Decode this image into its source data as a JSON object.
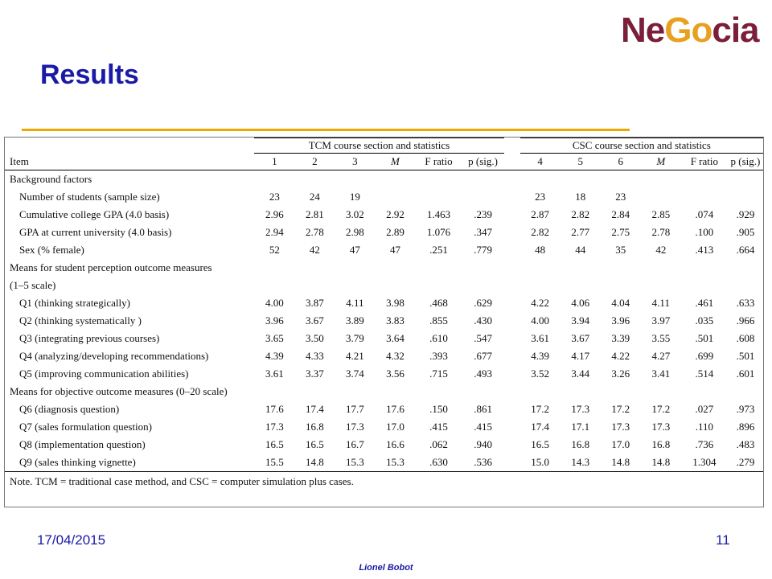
{
  "logo": {
    "part1": "Ne",
    "part2": "Go",
    "part3": "cia"
  },
  "title": "Results",
  "table": {
    "group_tcm": "TCM course section and statistics",
    "group_csc": "CSC course section and statistics",
    "columns": [
      "Item",
      "1",
      "2",
      "3",
      "M",
      "F ratio",
      "p (sig.)",
      "4",
      "5",
      "6",
      "M",
      "F ratio",
      "p (sig.)"
    ],
    "rows": [
      {
        "type": "section",
        "label": "Background factors",
        "values": []
      },
      {
        "type": "item",
        "label": "Number of students (sample size)",
        "values": [
          "23",
          "24",
          "19",
          "",
          "",
          "",
          "23",
          "18",
          "23",
          "",
          "",
          ""
        ]
      },
      {
        "type": "item",
        "label": "Cumulative college GPA (4.0 basis)",
        "values": [
          "2.96",
          "2.81",
          "3.02",
          "2.92",
          "1.463",
          ".239",
          "2.87",
          "2.82",
          "2.84",
          "2.85",
          ".074",
          ".929"
        ]
      },
      {
        "type": "item",
        "label": "GPA at current university (4.0 basis)",
        "values": [
          "2.94",
          "2.78",
          "2.98",
          "2.89",
          "1.076",
          ".347",
          "2.82",
          "2.77",
          "2.75",
          "2.78",
          ".100",
          ".905"
        ]
      },
      {
        "type": "item",
        "label": "Sex (% female)",
        "values": [
          "52",
          "42",
          "47",
          "47",
          ".251",
          ".779",
          "48",
          "44",
          "35",
          "42",
          ".413",
          ".664"
        ]
      },
      {
        "type": "section",
        "label": "Means for student perception outcome measures",
        "values": []
      },
      {
        "type": "section",
        "label": "(1–5 scale)",
        "values": []
      },
      {
        "type": "item",
        "label": "Q1 (thinking strategically)",
        "values": [
          "4.00",
          "3.87",
          "4.11",
          "3.98",
          ".468",
          ".629",
          "4.22",
          "4.06",
          "4.04",
          "4.11",
          ".461",
          ".633"
        ]
      },
      {
        "type": "item",
        "label": "Q2 (thinking systematically )",
        "values": [
          "3.96",
          "3.67",
          "3.89",
          "3.83",
          ".855",
          ".430",
          "4.00",
          "3.94",
          "3.96",
          "3.97",
          ".035",
          ".966"
        ]
      },
      {
        "type": "item",
        "label": "Q3 (integrating previous courses)",
        "values": [
          "3.65",
          "3.50",
          "3.79",
          "3.64",
          ".610",
          ".547",
          "3.61",
          "3.67",
          "3.39",
          "3.55",
          ".501",
          ".608"
        ]
      },
      {
        "type": "item",
        "label": "Q4 (analyzing/developing recommendations)",
        "values": [
          "4.39",
          "4.33",
          "4.21",
          "4.32",
          ".393",
          ".677",
          "4.39",
          "4.17",
          "4.22",
          "4.27",
          ".699",
          ".501"
        ]
      },
      {
        "type": "item",
        "label": "Q5 (improving communication abilities)",
        "values": [
          "3.61",
          "3.37",
          "3.74",
          "3.56",
          ".715",
          ".493",
          "3.52",
          "3.44",
          "3.26",
          "3.41",
          ".514",
          ".601"
        ]
      },
      {
        "type": "section",
        "label": "Means for objective outcome measures (0–20 scale)",
        "values": []
      },
      {
        "type": "item",
        "label": "Q6 (diagnosis question)",
        "values": [
          "17.6",
          "17.4",
          "17.7",
          "17.6",
          ".150",
          ".861",
          "17.2",
          "17.3",
          "17.2",
          "17.2",
          ".027",
          ".973"
        ]
      },
      {
        "type": "item",
        "label": "Q7 (sales formulation question)",
        "values": [
          "17.3",
          "16.8",
          "17.3",
          "17.0",
          ".415",
          ".415",
          "17.4",
          "17.1",
          "17.3",
          "17.3",
          ".110",
          ".896"
        ]
      },
      {
        "type": "item",
        "label": "Q8 (implementation question)",
        "values": [
          "16.5",
          "16.5",
          "16.7",
          "16.6",
          ".062",
          ".940",
          "16.5",
          "16.8",
          "17.0",
          "16.8",
          ".736",
          ".483"
        ]
      },
      {
        "type": "item",
        "label": "Q9 (sales thinking vignette)",
        "values": [
          "15.5",
          "14.8",
          "15.3",
          "15.3",
          ".630",
          ".536",
          "15.0",
          "14.3",
          "14.8",
          "14.8",
          "1.304",
          ".279"
        ]
      }
    ],
    "note": "Note. TCM = traditional case method, and CSC = computer simulation plus cases."
  },
  "footer": {
    "date": "17/04/2015",
    "page": "11",
    "author": "Lionel Bobot"
  },
  "colors": {
    "title": "#1a1aa6",
    "rule": "#f0a800",
    "logo_primary": "#7a1e3a",
    "logo_accent": "#e8a020"
  }
}
